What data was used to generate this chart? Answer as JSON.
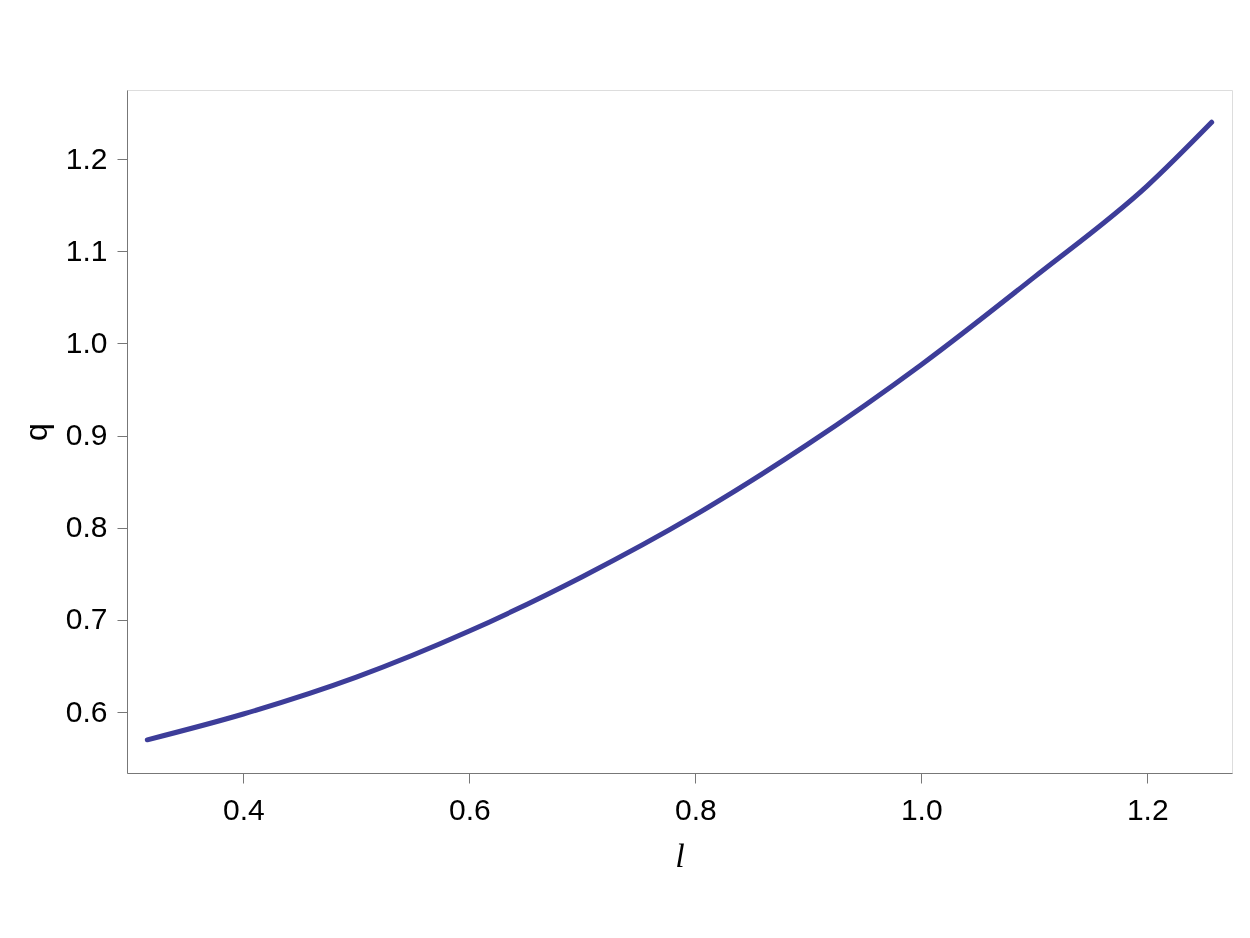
{
  "chart_data": {
    "type": "line",
    "xlabel": "l",
    "ylabel": "q",
    "x": [
      0.315,
      0.4,
      0.5,
      0.6,
      0.7,
      0.8,
      0.9,
      1.0,
      1.1,
      1.2,
      1.257
    ],
    "series": [
      {
        "color": "#3d3d99",
        "values": [
          0.57,
          0.598,
          0.638,
          0.688,
          0.747,
          0.814,
          0.891,
          0.977,
          1.072,
          1.171,
          1.24
        ]
      }
    ],
    "xlim": [
      0.297,
      1.275
    ],
    "ylim": [
      0.534,
      1.275
    ],
    "xticks": [
      0.4,
      0.6,
      0.8,
      {
        "value": 1,
        "label": "1.0"
      },
      1.2
    ],
    "yticks": [
      0.6,
      0.7,
      0.8,
      0.9,
      {
        "value": 1,
        "label": "1.0"
      },
      1.1,
      1.2
    ],
    "grid": false,
    "legend": false,
    "marker": "none",
    "line_style": "solid"
  }
}
